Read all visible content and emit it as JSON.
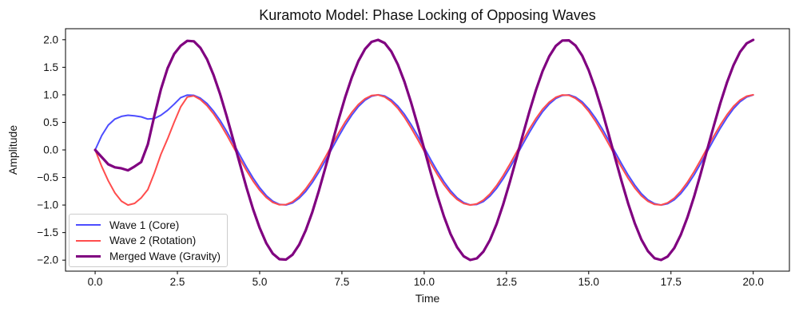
{
  "chart_data": {
    "type": "line",
    "title": "Kuramoto Model: Phase Locking of Opposing Waves",
    "xlabel": "Time",
    "ylabel": "Amplitude",
    "xlim": [
      -0.9,
      21.1
    ],
    "ylim": [
      -2.2,
      2.2
    ],
    "grid": false,
    "legend_position": "lower left",
    "x_ticks": [
      0,
      2.5,
      5,
      7.5,
      10,
      12.5,
      15,
      17.5,
      20
    ],
    "x_tick_labels": [
      "0.0",
      "2.5",
      "5.0",
      "7.5",
      "10.0",
      "12.5",
      "15.0",
      "17.5",
      "20.0"
    ],
    "y_ticks": [
      -2,
      -1.5,
      -1,
      -0.5,
      0,
      0.5,
      1,
      1.5,
      2
    ],
    "y_tick_labels": [
      "−2.0",
      "−1.5",
      "−1.0",
      "−0.5",
      "0.0",
      "0.5",
      "1.0",
      "1.5",
      "2.0"
    ],
    "axes_color": "#000000",
    "text_color": "#111111",
    "x_start": 0,
    "x_step": 0.2,
    "series": [
      {
        "name": "Wave 1 (Core)",
        "color": "#4d4dff",
        "line_width": 2,
        "values": [
          0.0,
          0.26,
          0.45,
          0.56,
          0.61,
          0.63,
          0.62,
          0.6,
          0.56,
          0.57,
          0.63,
          0.72,
          0.83,
          0.95,
          0.996,
          0.991,
          0.939,
          0.842,
          0.704,
          0.532,
          0.334,
          0.123,
          -0.097,
          -0.311,
          -0.509,
          -0.684,
          -0.828,
          -0.93,
          -0.988,
          -0.998,
          -0.961,
          -0.877,
          -0.752,
          -0.591,
          -0.401,
          -0.192,
          0.027,
          0.244,
          0.449,
          0.633,
          0.786,
          0.902,
          0.974,
          1.0,
          0.978,
          0.909,
          0.796,
          0.645,
          0.463,
          0.26,
          0.043,
          -0.176,
          -0.386,
          -0.576,
          -0.74,
          -0.868,
          -0.956,
          -0.997,
          -0.99,
          -0.936,
          -0.837,
          -0.698,
          -0.524,
          -0.325,
          -0.113,
          0.106,
          0.32,
          0.518,
          0.693,
          0.832,
          0.933,
          0.989,
          0.998,
          0.958,
          0.873,
          0.746,
          0.583,
          0.392,
          0.182,
          -0.036,
          -0.253,
          -0.457,
          -0.639,
          -0.794,
          -0.906,
          -0.976,
          -1.0,
          -0.976,
          -0.905,
          -0.791,
          -0.639,
          -0.456,
          -0.251,
          -0.034,
          0.185,
          0.394,
          0.585,
          0.748,
          0.874,
          0.959,
          0.998
        ]
      },
      {
        "name": "Wave 2 (Rotation)",
        "color": "#ff4d4d",
        "line_width": 2,
        "values": [
          0.0,
          -0.3,
          -0.56,
          -0.78,
          -0.93,
          -1.0,
          -0.97,
          -0.87,
          -0.72,
          -0.42,
          -0.08,
          0.2,
          0.5,
          0.78,
          0.96,
          0.981,
          0.914,
          0.804,
          0.656,
          0.475,
          0.272,
          0.057,
          -0.162,
          -0.372,
          -0.565,
          -0.731,
          -0.863,
          -0.952,
          -0.996,
          -0.992,
          -0.941,
          -0.844,
          -0.707,
          -0.537,
          -0.34,
          -0.127,
          0.092,
          0.307,
          0.507,
          0.682,
          0.825,
          0.928,
          0.987,
          0.998,
          0.962,
          0.879,
          0.755,
          0.593,
          0.403,
          0.196,
          -0.022,
          -0.24,
          -0.446,
          -0.629,
          -0.783,
          -0.899,
          -0.973,
          -1.0,
          -0.979,
          -0.911,
          -0.799,
          -0.649,
          -0.467,
          -0.262,
          -0.048,
          0.171,
          0.382,
          0.573,
          0.739,
          0.867,
          0.955,
          0.997,
          0.991,
          0.937,
          0.839,
          0.7,
          0.529,
          0.33,
          0.117,
          -0.102,
          -0.316,
          -0.515,
          -0.689,
          -0.832,
          -0.932,
          -0.989,
          -0.998,
          -0.959,
          -0.875,
          -0.749,
          -0.587,
          -0.396,
          -0.187,
          0.032,
          0.249,
          0.453,
          0.637,
          0.79,
          0.904,
          0.975,
          1.0
        ]
      },
      {
        "name": "Merged Wave (Gravity)",
        "color": "#800080",
        "line_width": 3.2,
        "values": [
          0.0,
          -0.13,
          -0.26,
          -0.315,
          -0.335,
          -0.37,
          -0.3,
          -0.22,
          0.1,
          0.62,
          1.1,
          1.48,
          1.74,
          1.89,
          1.98,
          1.972,
          1.853,
          1.646,
          1.359,
          1.007,
          0.606,
          0.18,
          -0.258,
          -0.683,
          -1.074,
          -1.415,
          -1.691,
          -1.882,
          -1.983,
          -1.99,
          -1.901,
          -1.721,
          -1.46,
          -1.128,
          -0.74,
          -0.319,
          0.119,
          0.551,
          0.955,
          1.315,
          1.611,
          1.83,
          1.961,
          1.998,
          1.94,
          1.788,
          1.551,
          1.238,
          0.866,
          0.456,
          0.021,
          -0.416,
          -0.831,
          -1.205,
          -1.523,
          -1.767,
          -1.93,
          -1.997,
          -1.969,
          -1.846,
          -1.635,
          -1.346,
          -0.991,
          -0.588,
          -0.161,
          0.277,
          0.702,
          1.091,
          1.431,
          1.699,
          1.888,
          1.986,
          1.988,
          1.895,
          1.712,
          1.446,
          1.112,
          0.722,
          0.3,
          -0.138,
          -0.569,
          -0.972,
          -1.328,
          -1.626,
          -1.837,
          -1.965,
          -1.998,
          -1.935,
          -1.78,
          -1.539,
          -1.226,
          -0.852,
          -0.438,
          -0.002,
          0.434,
          0.847,
          1.222,
          1.537,
          1.778,
          1.934,
          1.998
        ]
      }
    ]
  }
}
